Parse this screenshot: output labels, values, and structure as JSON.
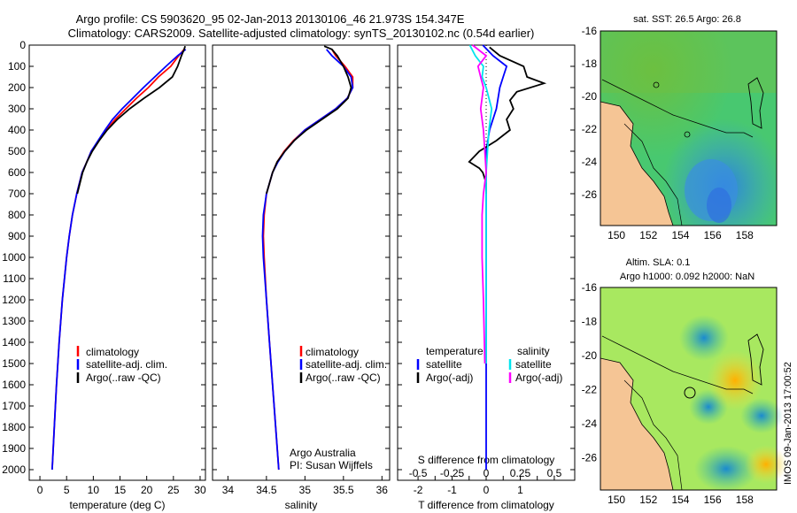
{
  "header": {
    "line1": "Argo profile: CS 5903620_95 02-Jan-2013 20130106_46 21.973S 154.347E",
    "line2": "Climatology: CARS2009. Satellite-adjusted climatology: synTS_20130102.nc (0.54d earlier)"
  },
  "side_stamp": "IMOS 09-Jan-2013 17:00:52",
  "colors": {
    "climatology": "#ff0000",
    "satellite": "#0000ff",
    "argo": "#000000",
    "sat_salinity": "#00e5ee",
    "argo_salinity": "#ff00ff"
  },
  "legend": {
    "climatology": "climatology",
    "satellite": "satellite-adj. clim.",
    "argo": "Argo(..raw -QC)",
    "temperature_title": "temperature",
    "salinity_title": "salinity",
    "diff_satellite": "satellite",
    "diff_argo": "Argo(-adj)"
  },
  "credit": {
    "line1": "Argo Australia",
    "line2": "PI: Susan Wijffels"
  },
  "chart_data": [
    {
      "type": "line",
      "name": "temperature-profile",
      "xlabel": "temperature (deg C)",
      "ylabel": "",
      "xlim": [
        -2,
        31
      ],
      "ylim": [
        2050,
        0
      ],
      "xticks": [
        0,
        5,
        10,
        15,
        20,
        25,
        30
      ],
      "yticks": [
        0,
        100,
        200,
        300,
        400,
        500,
        600,
        700,
        800,
        900,
        1000,
        1100,
        1200,
        1300,
        1400,
        1500,
        1600,
        1700,
        1800,
        1900,
        2000
      ],
      "series": [
        {
          "name": "climatology",
          "depth": [
            20,
            50,
            100,
            150,
            200,
            250,
            300,
            350,
            400,
            450,
            500,
            550,
            600,
            700,
            800,
            900,
            1000,
            1200,
            1400,
            1600,
            1800,
            2000
          ],
          "values": [
            27,
            26,
            24.5,
            22.2,
            20.3,
            18.1,
            16.1,
            14.1,
            12.4,
            11,
            9.6,
            8.8,
            7.9,
            6.9,
            6.1,
            5.5,
            5,
            4.2,
            3.6,
            3.1,
            2.7,
            2.3
          ]
        },
        {
          "name": "satellite",
          "depth": [
            20,
            50,
            100,
            150,
            200,
            250,
            300,
            350,
            400,
            450,
            500,
            550,
            600,
            700,
            800,
            900,
            1000,
            1200,
            1400,
            1600,
            1800,
            2000
          ],
          "values": [
            27.3,
            25.8,
            23.6,
            21.5,
            19.4,
            17.4,
            15.4,
            13.6,
            12.2,
            10.9,
            9.6,
            8.8,
            7.9,
            6.9,
            6.1,
            5.5,
            5,
            4.2,
            3.6,
            3.1,
            2.7,
            2.3
          ]
        },
        {
          "name": "argo",
          "depth": [
            5,
            20,
            50,
            100,
            150,
            200,
            250,
            300,
            350,
            400,
            450,
            500,
            550,
            600,
            700
          ],
          "values": [
            27.2,
            27,
            26.5,
            25.8,
            24.8,
            22.4,
            19.5,
            16.8,
            14.5,
            12.6,
            11.1,
            9.8,
            8.8,
            8,
            7
          ]
        }
      ]
    },
    {
      "type": "line",
      "name": "salinity-profile",
      "xlabel": "salinity",
      "ylabel": "",
      "xlim": [
        33.8,
        36.1
      ],
      "ylim": [
        2050,
        0
      ],
      "xticks": [
        34,
        34.5,
        35,
        35.5,
        36
      ],
      "series": [
        {
          "name": "climatology",
          "depth": [
            20,
            50,
            100,
            150,
            200,
            250,
            300,
            350,
            400,
            450,
            500,
            550,
            600,
            700,
            800,
            900,
            1000,
            1200,
            1400,
            1600,
            1800,
            2000
          ],
          "values": [
            35.35,
            35.4,
            35.52,
            35.62,
            35.62,
            35.55,
            35.4,
            35.2,
            35.0,
            34.85,
            34.73,
            34.64,
            34.58,
            34.5,
            34.47,
            34.46,
            34.47,
            34.5,
            34.54,
            34.58,
            34.62,
            34.66
          ]
        },
        {
          "name": "satellite",
          "depth": [
            20,
            50,
            100,
            150,
            200,
            250,
            300,
            350,
            400,
            450,
            500,
            550,
            600,
            700,
            800,
            900,
            1000,
            1200,
            1400,
            1600,
            1800,
            2000
          ],
          "values": [
            35.28,
            35.35,
            35.5,
            35.6,
            35.62,
            35.55,
            35.4,
            35.2,
            35.0,
            34.86,
            34.74,
            34.65,
            34.58,
            34.5,
            34.46,
            34.45,
            34.46,
            34.5,
            34.54,
            34.58,
            34.62,
            34.66
          ]
        },
        {
          "name": "argo",
          "depth": [
            5,
            20,
            50,
            100,
            150,
            200,
            250,
            300,
            350,
            400,
            450,
            500,
            550,
            600,
            700
          ],
          "values": [
            35.25,
            35.35,
            35.42,
            35.5,
            35.56,
            35.6,
            35.56,
            35.42,
            35.22,
            35.02,
            34.86,
            34.74,
            34.64,
            34.58,
            34.5
          ]
        }
      ]
    },
    {
      "type": "line",
      "name": "difference-profile",
      "xlabel": "T difference from climatology",
      "x2label": "S difference from climatology",
      "xlim": [
        -2.6,
        2.6
      ],
      "ylim": [
        2050,
        0
      ],
      "xticks": [
        -2,
        -1.5,
        -1,
        -0.5,
        0,
        0.5,
        1,
        1.5,
        2
      ],
      "xtick_labels": [
        "-2",
        "",
        "-1",
        "",
        "0",
        "",
        "1",
        "",
        ""
      ],
      "x2ticks": [
        -0.5,
        -0.25,
        0,
        0.25,
        0.5
      ],
      "x2tick_labels": [
        "-0.5",
        "-0.25",
        "0",
        "0.25",
        "0.5"
      ],
      "series": [
        {
          "name": "temperature satellite",
          "depth": [
            0,
            50,
            100,
            150,
            200,
            300,
            400,
            500,
            600,
            800,
            1000,
            1200,
            1500,
            1800,
            2000
          ],
          "values": [
            -0.1,
            0.2,
            0.6,
            0.5,
            0.4,
            0.3,
            0.1,
            0,
            0,
            0,
            0,
            0,
            0,
            0,
            0
          ]
        },
        {
          "name": "temperature argo",
          "depth": [
            10,
            50,
            100,
            150,
            180,
            220,
            260,
            300,
            350,
            400,
            450,
            500,
            550,
            580,
            600,
            650,
            700
          ],
          "values": [
            0.1,
            0.4,
            1.1,
            1.2,
            1.7,
            0.9,
            0.7,
            0.8,
            0.6,
            0.7,
            0.3,
            -0.2,
            -0.5,
            -0.2,
            -0.1,
            0,
            0
          ]
        },
        {
          "name": "salinity satellite",
          "depth": [
            0,
            50,
            100,
            150,
            200,
            250,
            300,
            400,
            500,
            600,
            800,
            1000,
            1200,
            1500
          ],
          "values": [
            -0.12,
            -0.08,
            -0.02,
            -0.03,
            0,
            0.02,
            0.04,
            0.02,
            0.01,
            0,
            0,
            0,
            0,
            0
          ]
        },
        {
          "name": "salinity argo",
          "depth": [
            0,
            50,
            100,
            150,
            200,
            300,
            400,
            500,
            600,
            700,
            800,
            1000,
            1200,
            1500
          ],
          "values": [
            -0.1,
            0,
            -0.06,
            -0.04,
            -0.02,
            -0.04,
            -0.02,
            -0.01,
            0,
            -0.02,
            -0.03,
            -0.03,
            -0.02,
            -0.01
          ]
        }
      ]
    },
    {
      "type": "heatmap",
      "name": "sst-map",
      "title": "sat. SST: 26.5 Argo: 26.8",
      "xlim": [
        149,
        160
      ],
      "ylim": [
        -27.9,
        -16
      ],
      "xticks": [
        150,
        152,
        154,
        156,
        158
      ],
      "yticks": [
        -16,
        -18,
        -20,
        -22,
        -24,
        -26
      ]
    },
    {
      "type": "heatmap",
      "name": "sla-map",
      "title": "Altim. SLA: 0.1",
      "subtitle": "Argo h1000: 0.092 h2000: NaN",
      "xlim": [
        149,
        160
      ],
      "ylim": [
        -27.9,
        -16
      ],
      "xticks": [
        150,
        152,
        154,
        156,
        158
      ],
      "yticks": [
        -16,
        -18,
        -20,
        -22,
        -24,
        -26
      ]
    }
  ]
}
